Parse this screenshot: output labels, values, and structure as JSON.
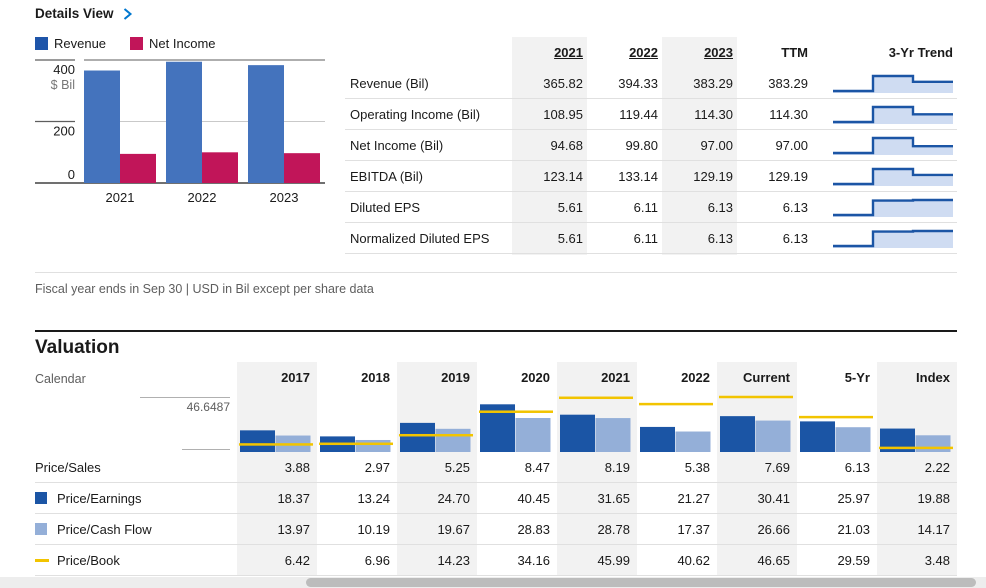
{
  "header": {
    "title": "Details View"
  },
  "legend": [
    {
      "label": "Revenue",
      "color": "#1e55a9"
    },
    {
      "label": "Net Income",
      "color": "#c11559"
    }
  ],
  "chart_data": [
    {
      "type": "bar",
      "title": "Revenue and Net Income by fiscal year",
      "categories": [
        "2021",
        "2022",
        "2023"
      ],
      "series": [
        {
          "name": "Revenue",
          "color": "#4473bd",
          "values": [
            365.82,
            394.33,
            383.29
          ]
        },
        {
          "name": "Net Income",
          "color": "#c11559",
          "values": [
            94.68,
            99.8,
            97.0
          ]
        }
      ],
      "ylabel": "$ Bil",
      "yticks": [
        0,
        200,
        400
      ],
      "ylim": [
        0,
        416
      ],
      "legend_position": "top-left",
      "grid": "horizontal"
    },
    {
      "type": "bar",
      "title": "Valuation",
      "categories": [
        "2017",
        "2018",
        "2019",
        "2020",
        "2021",
        "2022",
        "Current",
        "5-Yr",
        "Index"
      ],
      "series": [
        {
          "name": "Price/Earnings",
          "type": "bar",
          "color": "#1b55a5",
          "values": [
            18.37,
            13.24,
            24.7,
            40.45,
            31.65,
            21.27,
            30.41,
            25.97,
            19.88
          ]
        },
        {
          "name": "Price/Cash Flow",
          "type": "bar",
          "color": "#94afd8",
          "values": [
            13.97,
            10.19,
            19.67,
            28.83,
            28.78,
            17.37,
            26.66,
            21.03,
            14.17
          ]
        },
        {
          "name": "Price/Book",
          "type": "line",
          "color": "#f2c400",
          "values": [
            6.42,
            6.96,
            14.23,
            34.16,
            45.99,
            40.62,
            46.65,
            29.59,
            3.48
          ]
        }
      ],
      "ylim": [
        0,
        46.6487
      ],
      "axis_max_label": "46.6487"
    }
  ],
  "financials": {
    "columns": [
      "2021",
      "2022",
      "2023",
      "TTM"
    ],
    "trend_header": "3-Yr Trend",
    "rows": [
      {
        "label": "Revenue (Bil)",
        "values": [
          "365.82",
          "394.33",
          "383.29",
          "383.29"
        ],
        "trend": [
          365.82,
          394.33,
          383.29
        ]
      },
      {
        "label": "Operating Income (Bil)",
        "values": [
          "108.95",
          "119.44",
          "114.30",
          "114.30"
        ],
        "trend": [
          108.95,
          119.44,
          114.3
        ]
      },
      {
        "label": "Net Income (Bil)",
        "values": [
          "94.68",
          "99.80",
          "97.00",
          "97.00"
        ],
        "trend": [
          94.68,
          99.8,
          97.0
        ]
      },
      {
        "label": "EBITDA (Bil)",
        "values": [
          "123.14",
          "133.14",
          "129.19",
          "129.19"
        ],
        "trend": [
          123.14,
          133.14,
          129.19
        ]
      },
      {
        "label": "Diluted EPS",
        "values": [
          "5.61",
          "6.11",
          "6.13",
          "6.13"
        ],
        "trend": [
          5.61,
          6.11,
          6.13
        ]
      },
      {
        "label": "Normalized Diluted EPS",
        "values": [
          "5.61",
          "6.11",
          "6.13",
          "6.13"
        ],
        "trend": [
          5.61,
          6.11,
          6.13
        ]
      }
    ],
    "footnote": "Fiscal year ends in Sep 30 | USD in Bil except per share data"
  },
  "valuation": {
    "title": "Valuation",
    "calendar_label": "Calendar",
    "columns": [
      "2017",
      "2018",
      "2019",
      "2020",
      "2021",
      "2022",
      "Current",
      "5-Yr",
      "Index"
    ],
    "axis_label": "46.6487",
    "rows": [
      {
        "label": "Price/Sales",
        "swatch": null,
        "values": [
          "3.88",
          "2.97",
          "5.25",
          "8.47",
          "8.19",
          "5.38",
          "7.69",
          "6.13",
          "2.22"
        ]
      },
      {
        "label": "Price/Earnings",
        "swatch": "square",
        "swatch_color": "#1b55a5",
        "values": [
          "18.37",
          "13.24",
          "24.70",
          "40.45",
          "31.65",
          "21.27",
          "30.41",
          "25.97",
          "19.88"
        ]
      },
      {
        "label": "Price/Cash Flow",
        "swatch": "square",
        "swatch_color": "#94afd8",
        "values": [
          "13.97",
          "10.19",
          "19.67",
          "28.83",
          "28.78",
          "17.37",
          "26.66",
          "21.03",
          "14.17"
        ]
      },
      {
        "label": "Price/Book",
        "swatch": "dash",
        "swatch_color": "#f2c400",
        "values": [
          "6.42",
          "6.96",
          "14.23",
          "34.16",
          "45.99",
          "40.62",
          "46.65",
          "29.59",
          "3.48"
        ]
      }
    ]
  },
  "colors": {
    "accent_link": "#0077cf",
    "shaded_column": "#f2f2f2",
    "spark_line": "#1b55a5",
    "spark_fill": "#cfdcf2",
    "grid_light": "#c9c9c9",
    "axis_dark": "#5e5e5e"
  }
}
